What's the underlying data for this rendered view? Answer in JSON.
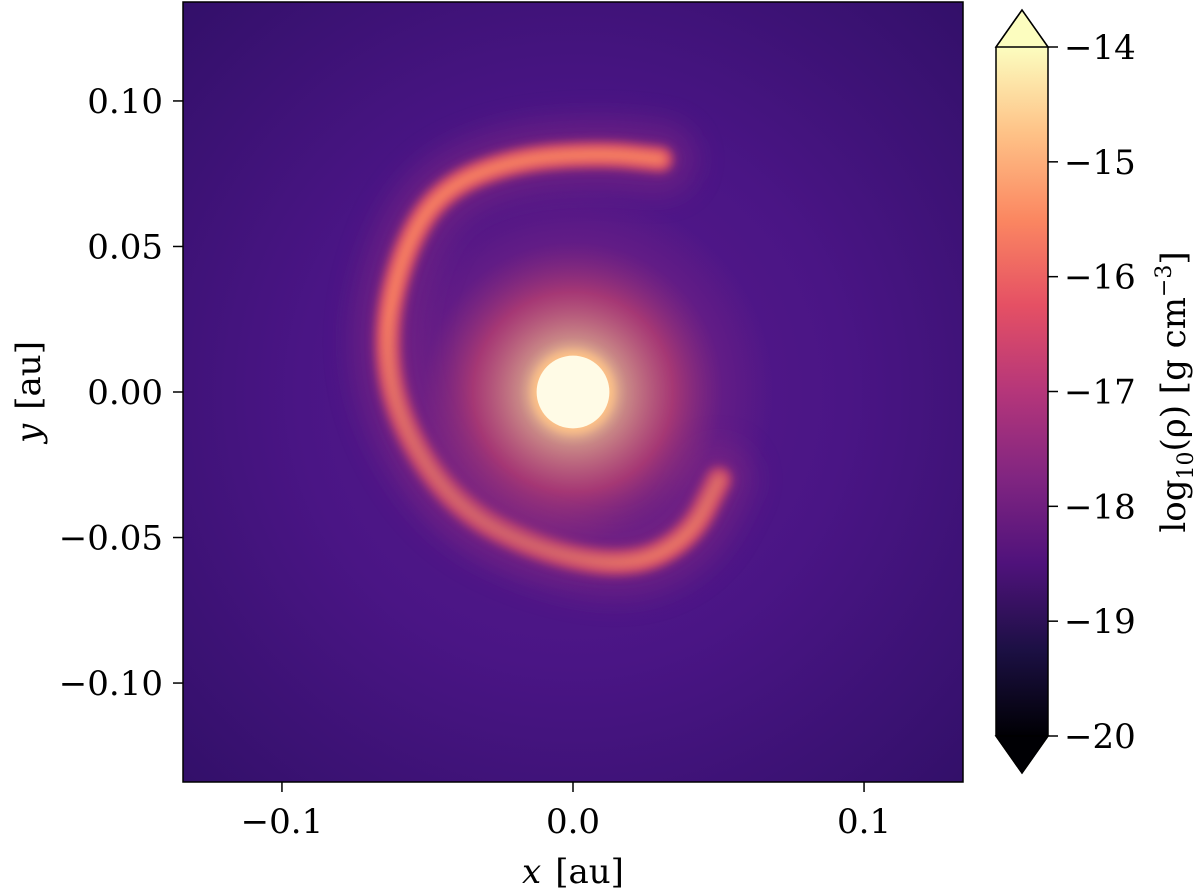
{
  "chart_data": {
    "type": "heatmap",
    "title": "",
    "xlabel_var": "x",
    "xlabel_unit": "[au]",
    "ylabel_var": "y",
    "ylabel_unit": "[au]",
    "xlim": [
      -0.134,
      0.134
    ],
    "ylim": [
      -0.134,
      0.134
    ],
    "x_ticks": [
      -0.1,
      0.0,
      0.1
    ],
    "x_tick_labels": [
      "−0.1",
      "0.0",
      "0.1"
    ],
    "y_ticks": [
      0.1,
      0.05,
      0.0,
      -0.05,
      -0.1
    ],
    "y_tick_labels": [
      "0.10",
      "0.05",
      "0.00",
      "−0.05",
      "−0.10"
    ],
    "colorbar": {
      "label_main": "log",
      "label_sub": "10",
      "label_rest": "(ρ)  [g cm",
      "label_sup": "−3",
      "label_end": "]",
      "range": [
        -20,
        -14
      ],
      "extend": "both",
      "ticks": [
        -14,
        -15,
        -16,
        -17,
        -18,
        -19,
        -20
      ],
      "tick_labels": [
        "−14",
        "−15",
        "−16",
        "−17",
        "−18",
        "−19",
        "−20"
      ],
      "colormap": "magma"
    },
    "features": {
      "central_star": {
        "x": 0.0,
        "y": 0.0,
        "radius_au": 0.0125
      },
      "spiral_arm_points": [
        [
          0.05,
          -0.03
        ],
        [
          0.04,
          -0.05
        ],
        [
          0.02,
          -0.06
        ],
        [
          -0.01,
          -0.055
        ],
        [
          -0.04,
          -0.04
        ],
        [
          -0.06,
          -0.01
        ],
        [
          -0.065,
          0.02
        ],
        [
          -0.058,
          0.05
        ],
        [
          -0.045,
          0.07
        ],
        [
          -0.02,
          0.08
        ],
        [
          0.01,
          0.082
        ],
        [
          0.03,
          0.08
        ]
      ],
      "background_density": -18.5
    }
  }
}
